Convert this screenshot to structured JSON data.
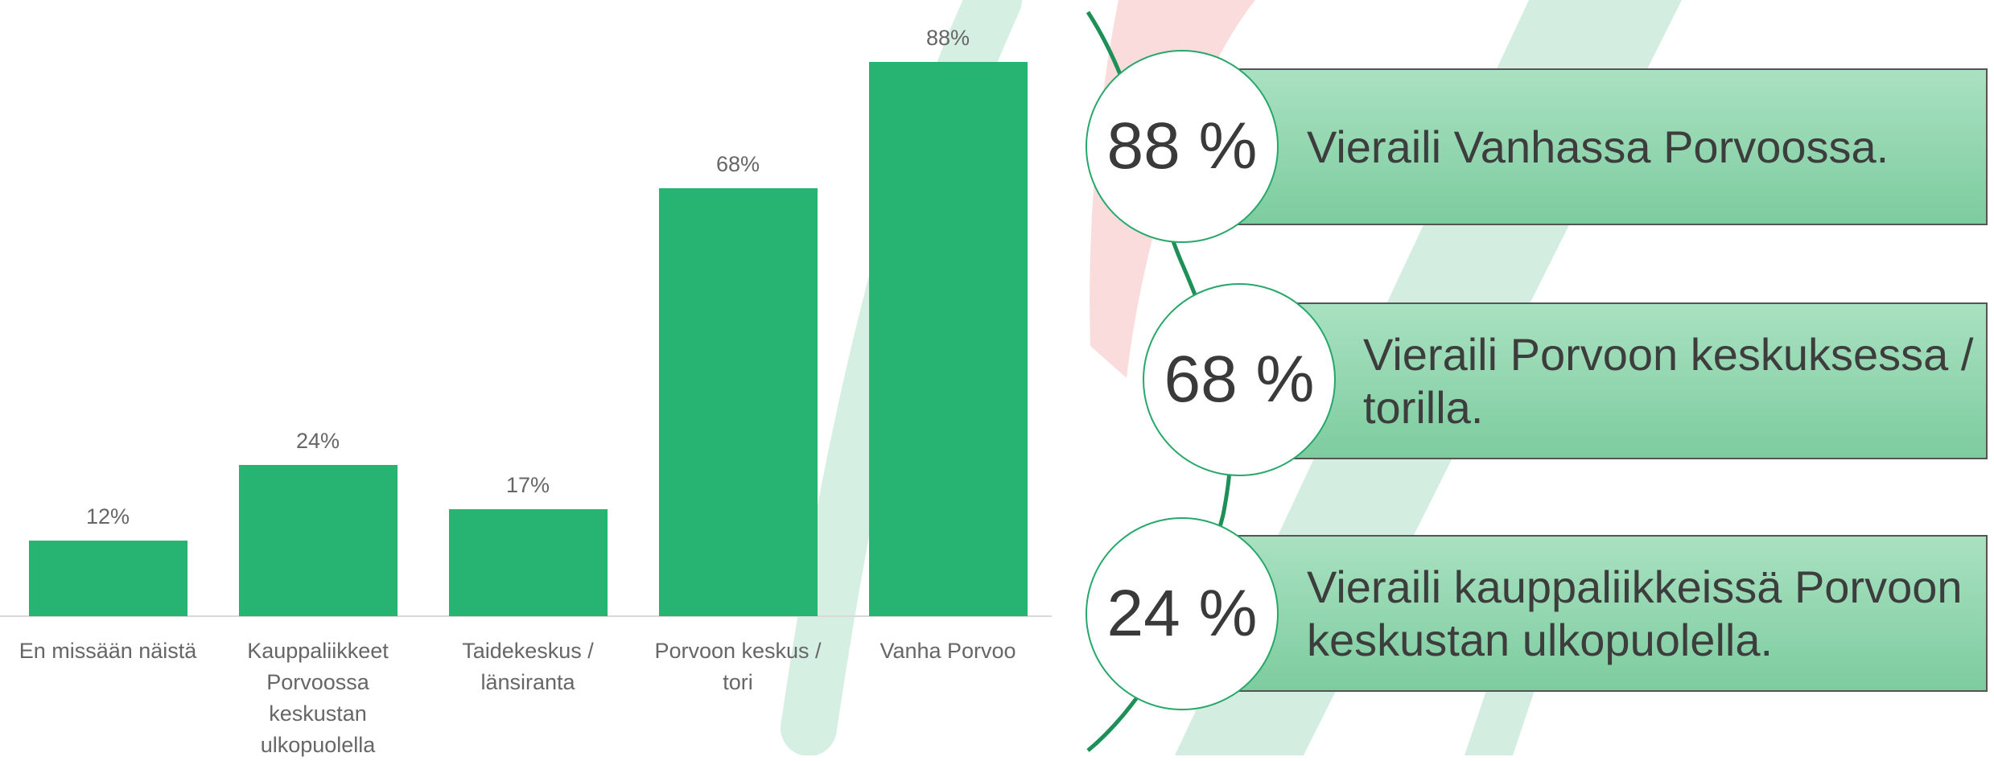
{
  "chart_data": {
    "type": "bar",
    "categories": [
      "En missään näistä",
      "Kauppaliikkeet Porvoossa keskustan ulkopuolella",
      "Taidekeskus / länsiranta",
      "Porvoon keskus / tori",
      "Vanha Porvoo"
    ],
    "values": [
      12,
      24,
      17,
      68,
      88
    ],
    "value_labels": [
      "12%",
      "24%",
      "17%",
      "68%",
      "88%"
    ],
    "color": "#27b372"
  },
  "infographic": {
    "items": [
      {
        "percent": "88 %",
        "text": "Vieraili Vanhassa Porvoossa."
      },
      {
        "percent": "68 %",
        "text": "Vieraili Porvoon keskuksessa / torilla."
      },
      {
        "percent": "24 %",
        "text": "Vieraili kauppaliikkeissä Porvoon keskustan ulkopuolella."
      }
    ]
  }
}
